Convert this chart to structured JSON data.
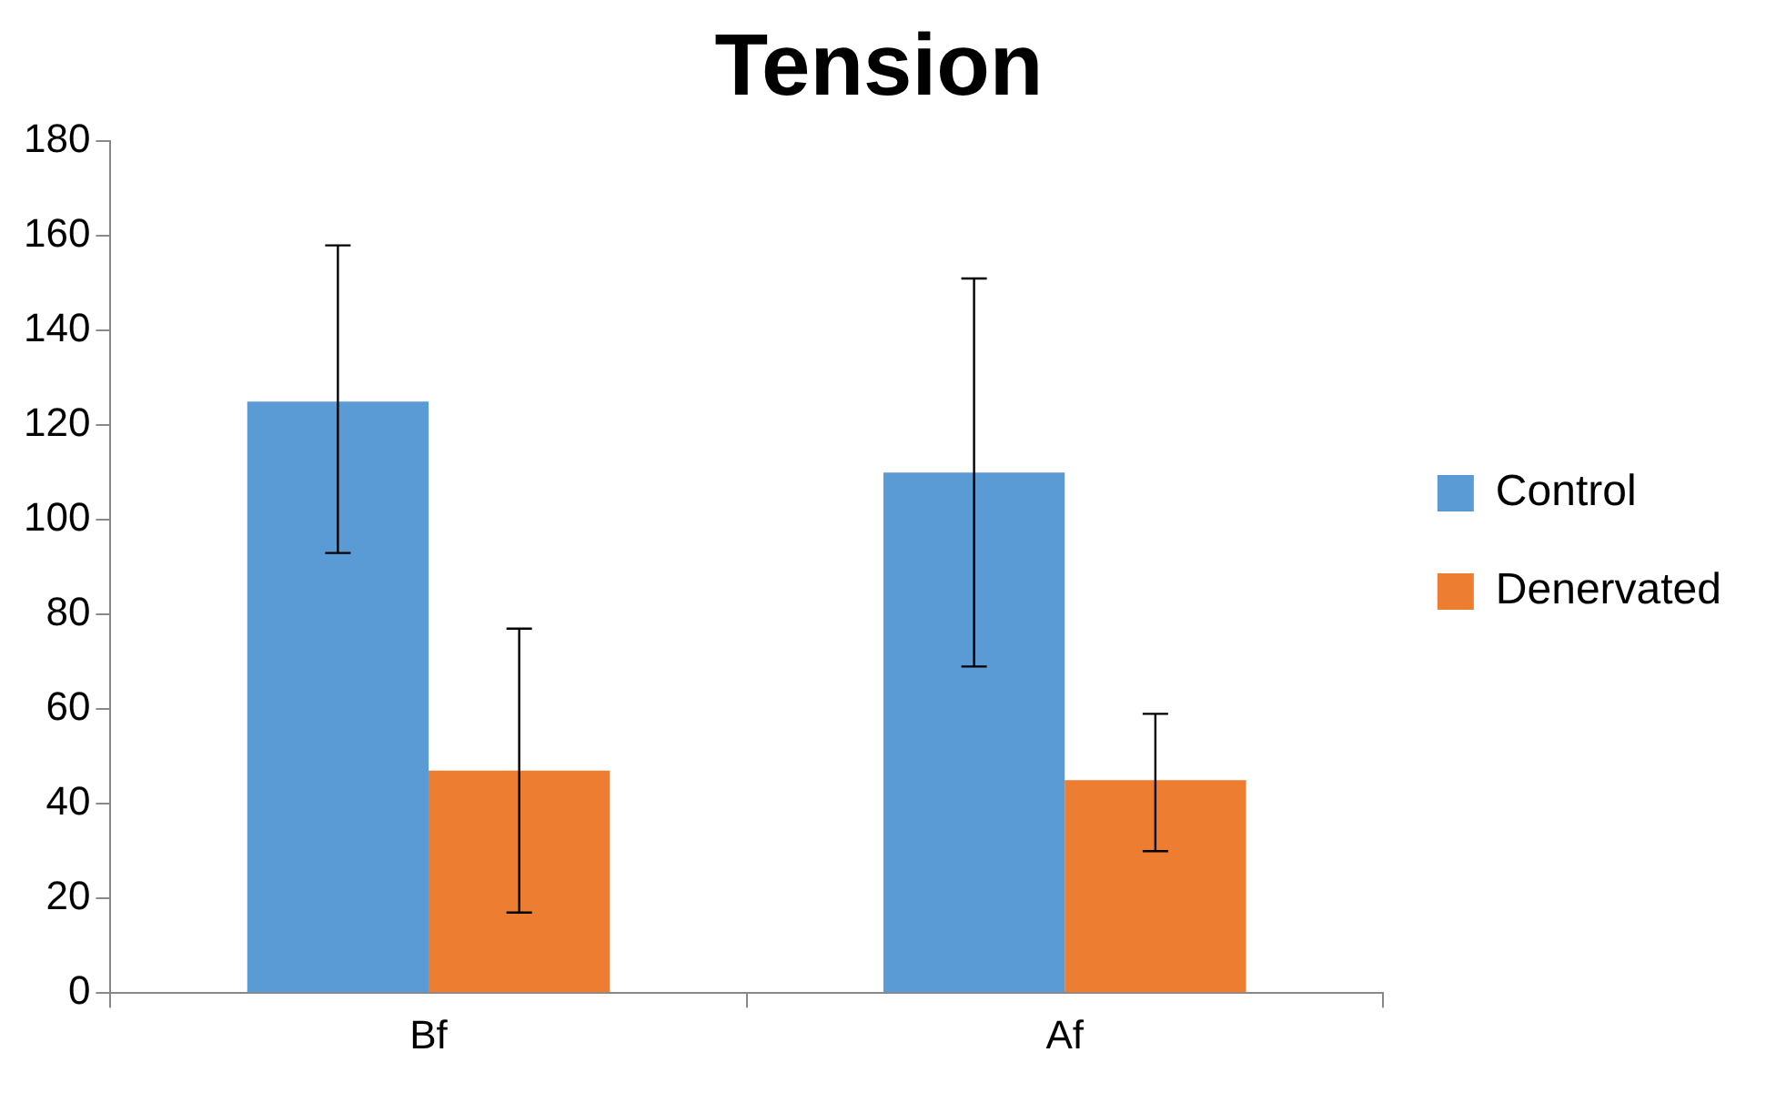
{
  "chart_data": {
    "type": "bar",
    "title": "Tension",
    "categories": [
      "Bf",
      "Af"
    ],
    "series": [
      {
        "name": "Control",
        "color": "#5b9bd5",
        "values": [
          125,
          110
        ],
        "errors": [
          [
            93,
            158
          ],
          [
            69,
            151
          ]
        ]
      },
      {
        "name": "Denervated",
        "color": "#ed7d31",
        "values": [
          47,
          45
        ],
        "errors": [
          [
            17,
            77
          ],
          [
            30,
            59
          ]
        ]
      }
    ],
    "ylim": [
      0,
      180
    ],
    "yticks": [
      0,
      20,
      40,
      60,
      80,
      100,
      120,
      140,
      160,
      180
    ],
    "grid": false,
    "legend": "right"
  }
}
